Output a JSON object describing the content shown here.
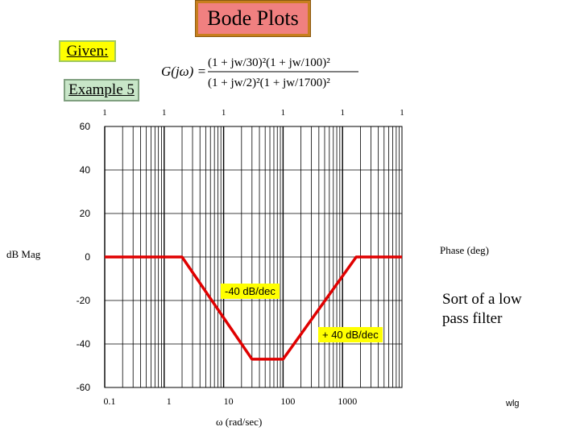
{
  "header": {
    "title": "Bode Plots",
    "given_label": "Given:",
    "example_label": "Example 5"
  },
  "formula": {
    "lhs": "G(jω) =",
    "numerator": "(1 + jw/30)²(1 + jw/100)²",
    "denominator": "(1 + jw/2)²(1 + jw/1700)²"
  },
  "labels": {
    "ylabel": "dB Mag",
    "y2label": "Phase (deg)",
    "xlabel": "ω (rad/sec)",
    "note": "Sort of a low pass filter",
    "author": "wlg",
    "slope_down": "-40 dB/dec",
    "slope_up": "+ 40 dB/dec"
  },
  "colors": {
    "curve": "#e00000",
    "grid": "#000000",
    "slope_bg": "#ffff00"
  },
  "chart_data": {
    "type": "line",
    "x_scale": "log",
    "xlim": [
      0.1,
      10000
    ],
    "ylim": [
      -60,
      60
    ],
    "y_ticks": [
      "60",
      "40",
      "20",
      "0",
      "-20",
      "-40",
      "-60"
    ],
    "x_ticks": [
      "0.1",
      "1",
      "10",
      "100",
      "1000"
    ],
    "top_ticks": [
      "1",
      "1",
      "1",
      "1",
      "1",
      "1"
    ],
    "grid": true,
    "series": [
      {
        "x": [
          0.1,
          2,
          30,
          100,
          1700,
          10000
        ],
        "y": [
          0,
          0,
          -47,
          -47,
          0,
          0
        ]
      }
    ]
  }
}
